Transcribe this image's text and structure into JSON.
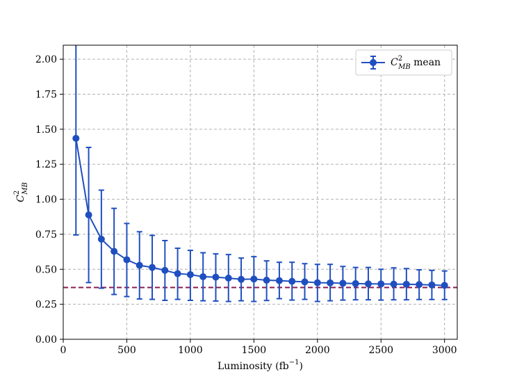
{
  "chart_data": {
    "type": "line",
    "xlabel": "Luminosity (fb",
    "xlabel_sup": "−1",
    "xlabel_end": ")",
    "ylabel": "C",
    "ylabel_sup": "2",
    "ylabel_sub": "MB",
    "xlim": [
      0,
      3100
    ],
    "ylim": [
      0.0,
      2.1
    ],
    "xticks": [
      0,
      500,
      1000,
      1500,
      2000,
      2500,
      3000
    ],
    "xtick_labels": [
      "0",
      "500",
      "1000",
      "1500",
      "2000",
      "2500",
      "3000"
    ],
    "yticks": [
      0.0,
      0.25,
      0.5,
      0.75,
      1.0,
      1.25,
      1.5,
      1.75,
      2.0
    ],
    "ytick_labels": [
      "0.00",
      "0.25",
      "0.50",
      "0.75",
      "1.00",
      "1.25",
      "1.50",
      "1.75",
      "2.00"
    ],
    "grid": true,
    "legend_position": "top-right",
    "series": [
      {
        "name_prefix": "C",
        "name_sup": "2",
        "name_sub": "MB",
        "name_suffix": " mean",
        "color": "#1f4fbf",
        "x": [
          100,
          200,
          300,
          400,
          500,
          600,
          700,
          800,
          900,
          1000,
          1100,
          1200,
          1300,
          1400,
          1500,
          1600,
          1700,
          1800,
          1900,
          2000,
          2100,
          2200,
          2300,
          2400,
          2500,
          2600,
          2700,
          2800,
          2900,
          3000
        ],
        "y": [
          1.435,
          0.888,
          0.715,
          0.628,
          0.568,
          0.528,
          0.513,
          0.492,
          0.469,
          0.462,
          0.447,
          0.444,
          0.437,
          0.428,
          0.43,
          0.422,
          0.419,
          0.414,
          0.41,
          0.404,
          0.403,
          0.4,
          0.398,
          0.396,
          0.395,
          0.394,
          0.393,
          0.391,
          0.388,
          0.385
        ],
        "yerr_low": [
          0.745,
          0.405,
          0.365,
          0.32,
          0.305,
          0.288,
          0.285,
          0.278,
          0.285,
          0.278,
          0.275,
          0.273,
          0.27,
          0.275,
          0.27,
          0.277,
          0.29,
          0.28,
          0.285,
          0.27,
          0.275,
          0.28,
          0.282,
          0.282,
          0.28,
          0.282,
          0.282,
          0.284,
          0.284,
          0.284
        ],
        "yerr_high": [
          2.12,
          1.37,
          1.065,
          0.935,
          0.827,
          0.768,
          0.742,
          0.705,
          0.65,
          0.635,
          0.618,
          0.61,
          0.605,
          0.58,
          0.59,
          0.56,
          0.55,
          0.55,
          0.54,
          0.535,
          0.535,
          0.52,
          0.513,
          0.513,
          0.5,
          0.51,
          0.505,
          0.496,
          0.492,
          0.488
        ]
      }
    ],
    "reference_line": {
      "y": 0.37,
      "color": "#8b1a4f",
      "style": "dashed"
    }
  }
}
